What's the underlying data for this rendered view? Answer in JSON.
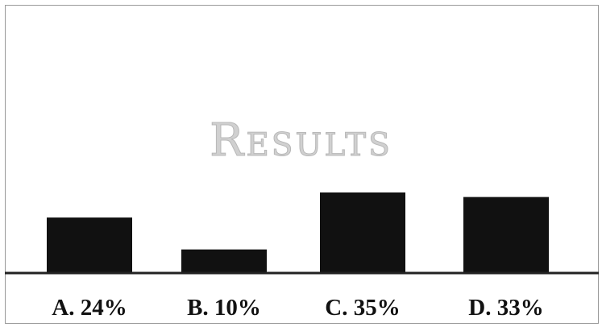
{
  "chart_data": {
    "type": "bar",
    "title": "Results",
    "categories": [
      "A.",
      "B.",
      "C.",
      "D."
    ],
    "values": [
      24,
      10,
      35,
      33
    ],
    "labels": [
      "A. 24%",
      "B. 10%",
      "C. 35%",
      "D. 33%"
    ],
    "ylim": [
      0,
      40
    ],
    "grid": false,
    "colors": {
      "bar": "#111111",
      "axis": "#222222",
      "title": "#cfcfcf"
    }
  }
}
